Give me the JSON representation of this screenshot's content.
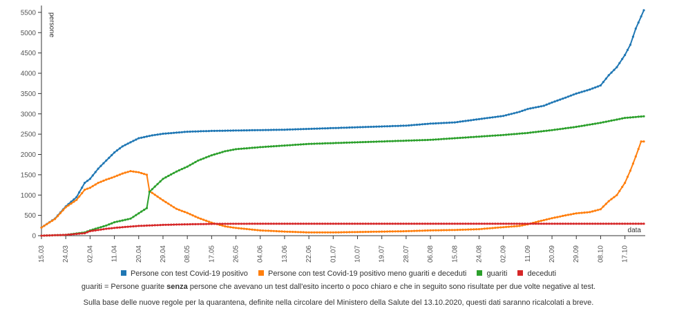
{
  "chart_data": {
    "type": "line",
    "ylabel": "persone",
    "xlabel": "data",
    "ylim": [
      0,
      5600
    ],
    "yticks": [
      0,
      500,
      1000,
      1500,
      2000,
      2500,
      3000,
      3500,
      4000,
      4500,
      5000,
      5500
    ],
    "x_start": "15.03",
    "x_end": "24.10",
    "xticks": [
      "15.03",
      "24.03",
      "02.04",
      "11.04",
      "20.04",
      "29.04",
      "08.05",
      "17.05",
      "26.05",
      "04.06",
      "13.06",
      "22.06",
      "01.07",
      "10.07",
      "19.07",
      "28.07",
      "06.08",
      "15.08",
      "24.08",
      "02.09",
      "11.09",
      "20.09",
      "29.09",
      "08.10",
      "17.10"
    ],
    "grid": false,
    "legend_position": "bottom",
    "series": [
      {
        "name": "Persone con test Covid-19 positivo",
        "color": "#1f77b4",
        "points": [
          [
            "15.03",
            200
          ],
          [
            "20.03",
            420
          ],
          [
            "24.03",
            720
          ],
          [
            "28.03",
            950
          ],
          [
            "31.03",
            1300
          ],
          [
            "02.04",
            1400
          ],
          [
            "05.04",
            1650
          ],
          [
            "08.04",
            1850
          ],
          [
            "11.04",
            2050
          ],
          [
            "14.04",
            2200
          ],
          [
            "17.04",
            2300
          ],
          [
            "20.04",
            2400
          ],
          [
            "25.04",
            2470
          ],
          [
            "29.04",
            2510
          ],
          [
            "08.05",
            2560
          ],
          [
            "17.05",
            2580
          ],
          [
            "26.05",
            2590
          ],
          [
            "04.06",
            2600
          ],
          [
            "13.06",
            2610
          ],
          [
            "22.06",
            2630
          ],
          [
            "01.07",
            2650
          ],
          [
            "10.07",
            2670
          ],
          [
            "19.07",
            2690
          ],
          [
            "28.07",
            2710
          ],
          [
            "06.08",
            2760
          ],
          [
            "15.08",
            2790
          ],
          [
            "24.08",
            2870
          ],
          [
            "02.09",
            2950
          ],
          [
            "08.09",
            3050
          ],
          [
            "11.09",
            3120
          ],
          [
            "17.09",
            3200
          ],
          [
            "20.09",
            3280
          ],
          [
            "25.09",
            3400
          ],
          [
            "29.09",
            3500
          ],
          [
            "04.10",
            3600
          ],
          [
            "08.10",
            3700
          ],
          [
            "11.10",
            3950
          ],
          [
            "14.10",
            4150
          ],
          [
            "17.10",
            4450
          ],
          [
            "19.10",
            4700
          ],
          [
            "21.10",
            5100
          ],
          [
            "24.10",
            5550
          ]
        ]
      },
      {
        "name": "Persone con test Covid-19 positivo meno guariti e deceduti",
        "color": "#ff7f0e",
        "points": [
          [
            "15.03",
            200
          ],
          [
            "20.03",
            410
          ],
          [
            "24.03",
            700
          ],
          [
            "28.03",
            880
          ],
          [
            "31.03",
            1130
          ],
          [
            "02.04",
            1180
          ],
          [
            "05.04",
            1300
          ],
          [
            "08.04",
            1380
          ],
          [
            "11.04",
            1450
          ],
          [
            "14.04",
            1530
          ],
          [
            "17.04",
            1590
          ],
          [
            "20.04",
            1560
          ],
          [
            "23.04",
            1500
          ],
          [
            "24.04",
            1100
          ],
          [
            "29.04",
            870
          ],
          [
            "04.05",
            660
          ],
          [
            "08.05",
            560
          ],
          [
            "12.05",
            440
          ],
          [
            "17.05",
            320
          ],
          [
            "22.05",
            230
          ],
          [
            "26.05",
            190
          ],
          [
            "04.06",
            130
          ],
          [
            "13.06",
            100
          ],
          [
            "22.06",
            80
          ],
          [
            "01.07",
            80
          ],
          [
            "10.07",
            90
          ],
          [
            "19.07",
            100
          ],
          [
            "28.07",
            110
          ],
          [
            "06.08",
            130
          ],
          [
            "15.08",
            140
          ],
          [
            "24.08",
            160
          ],
          [
            "02.09",
            210
          ],
          [
            "08.09",
            240
          ],
          [
            "11.09",
            280
          ],
          [
            "15.09",
            350
          ],
          [
            "20.09",
            430
          ],
          [
            "25.09",
            500
          ],
          [
            "29.09",
            550
          ],
          [
            "04.10",
            580
          ],
          [
            "08.10",
            650
          ],
          [
            "11.10",
            850
          ],
          [
            "14.10",
            1000
          ],
          [
            "17.10",
            1300
          ],
          [
            "19.10",
            1600
          ],
          [
            "21.10",
            1950
          ],
          [
            "23.10",
            2320
          ],
          [
            "24.10",
            2320
          ]
        ]
      },
      {
        "name": "guariti",
        "color": "#2ca02c",
        "points": [
          [
            "15.03",
            0
          ],
          [
            "24.03",
            20
          ],
          [
            "31.03",
            80
          ],
          [
            "02.04",
            130
          ],
          [
            "08.04",
            250
          ],
          [
            "11.04",
            330
          ],
          [
            "17.04",
            420
          ],
          [
            "20.04",
            550
          ],
          [
            "23.04",
            680
          ],
          [
            "24.04",
            1080
          ],
          [
            "29.04",
            1400
          ],
          [
            "04.05",
            1580
          ],
          [
            "08.05",
            1700
          ],
          [
            "12.05",
            1850
          ],
          [
            "17.05",
            1980
          ],
          [
            "22.05",
            2080
          ],
          [
            "26.05",
            2130
          ],
          [
            "04.06",
            2180
          ],
          [
            "13.06",
            2220
          ],
          [
            "22.06",
            2260
          ],
          [
            "01.07",
            2280
          ],
          [
            "10.07",
            2300
          ],
          [
            "19.07",
            2320
          ],
          [
            "28.07",
            2340
          ],
          [
            "06.08",
            2360
          ],
          [
            "15.08",
            2400
          ],
          [
            "24.08",
            2440
          ],
          [
            "02.09",
            2480
          ],
          [
            "11.09",
            2530
          ],
          [
            "20.09",
            2600
          ],
          [
            "29.09",
            2680
          ],
          [
            "08.10",
            2780
          ],
          [
            "17.10",
            2900
          ],
          [
            "24.10",
            2940
          ]
        ]
      },
      {
        "name": "deceduti",
        "color": "#d62728",
        "points": [
          [
            "15.03",
            0
          ],
          [
            "24.03",
            20
          ],
          [
            "31.03",
            60
          ],
          [
            "02.04",
            110
          ],
          [
            "08.04",
            170
          ],
          [
            "14.04",
            210
          ],
          [
            "20.04",
            240
          ],
          [
            "29.04",
            265
          ],
          [
            "08.05",
            280
          ],
          [
            "17.05",
            290
          ],
          [
            "04.06",
            295
          ],
          [
            "22.06",
            295
          ],
          [
            "24.10",
            295
          ]
        ]
      }
    ]
  },
  "legend": [
    {
      "label": "Persone con test Covid-19 positivo",
      "color": "#1f77b4"
    },
    {
      "label": "Persone con test Covid-19 positivo meno guariti e deceduti",
      "color": "#ff7f0e"
    },
    {
      "label": "guariti",
      "color": "#2ca02c"
    },
    {
      "label": "deceduti",
      "color": "#d62728"
    }
  ],
  "notes": {
    "line1_pre": "guariti = Persone guarite ",
    "line1_bold": "senza",
    "line1_post": " persone che avevano un test dall'esito incerto o poco chiaro e che in seguito sono risultate per due volte negative al test.",
    "line2": "Sulla base delle nuove regole per la quarantena, definite nella circolare del Ministero della Salute del 13.10.2020, questi dati saranno ricalcolati a breve."
  }
}
